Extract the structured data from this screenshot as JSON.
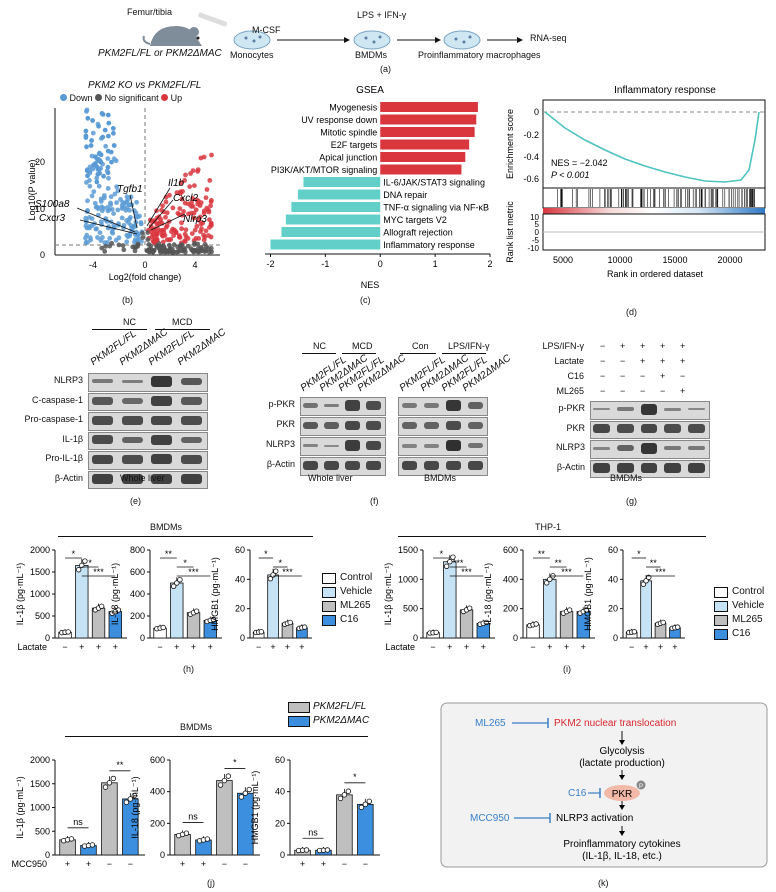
{
  "panel_a": {
    "source": "Femur/tibia",
    "genotypes": "PKM2FL/FL or PKM2ΔMAC",
    "steps": [
      "Monocytes",
      "BMDMs",
      "Proinflammatory macrophages",
      "RNA-seq"
    ],
    "arrow1": "M-CSF",
    "arrow2": "LPS + IFN-γ",
    "letter": "(a)"
  },
  "panel_b": {
    "title": "PKM2 KO vs PKM2FL/FL",
    "legend": [
      "Down",
      "No significant",
      "Up"
    ],
    "colors": {
      "down": "#5b9bd5",
      "ns": "#555555",
      "up": "#d9363e"
    },
    "genes": [
      "Tgfb1",
      "Il1b",
      "Cxcl2",
      "S100a8",
      "Cxcr3",
      "Nlrp3"
    ],
    "ylabel": "Log10(P value)",
    "xlabel": "Log2(fold change)",
    "xticks": [
      "-4",
      "0",
      "4"
    ],
    "yticks": [
      "0",
      "10",
      "20"
    ],
    "letter": "(b)"
  },
  "panel_c": {
    "title": "GSEA",
    "xlabel": "NES",
    "letter": "(c)",
    "chart_data": {
      "type": "bar",
      "categories": [
        "Myogenesis",
        "UV response down",
        "Mitotic spindle",
        "E2F targets",
        "Apical junction",
        "PI3K/AKT/MTOR signaling",
        "IL-6/JAK/STAT3 signaling",
        "DNA repair",
        "TNF-α signaling via NF-κB",
        "MYC targets V2",
        "Allograft rejection",
        "Inflammatory response"
      ],
      "values": [
        1.78,
        1.75,
        1.72,
        1.62,
        1.55,
        1.48,
        -1.4,
        -1.5,
        -1.62,
        -1.72,
        -1.8,
        -2.0
      ],
      "xlim": [
        -2.1,
        2
      ],
      "xticks": [
        "-2",
        "-1",
        "0",
        "1",
        "2"
      ]
    }
  },
  "panel_d": {
    "title": "Inflammatory response",
    "ylabel1": "Enrichment score",
    "ylabel2": "Rank list metric",
    "nes": "NES = −2.042",
    "p": "P < 0.001",
    "xlabel": "Rank in ordered dataset",
    "xticks": [
      "5000",
      "10000",
      "15000",
      "20000"
    ],
    "yticks1": [
      "0",
      "-0.2",
      "-0.4",
      "-0.6"
    ],
    "yticks2": [
      "10",
      "5",
      "0",
      "-5",
      "-10"
    ],
    "letter": "(d)"
  },
  "panel_e": {
    "groups": [
      "NC",
      "MCD"
    ],
    "lanes": [
      "PKM2FL/FL",
      "PKM2ΔMAC",
      "PKM2FL/FL",
      "PKM2ΔMAC"
    ],
    "rows": [
      "NLRP3",
      "C-caspase-1",
      "Pro-caspase-1",
      "IL-1β",
      "Pro-IL-1β",
      "β-Actin"
    ],
    "caption": "Whole liver",
    "letter": "(e)"
  },
  "panel_f": {
    "groups1": [
      "NC",
      "MCD"
    ],
    "groups2": [
      "Con",
      "LPS/IFN-γ"
    ],
    "lanes": [
      "PKM2FL/FL",
      "PKM2ΔMAC",
      "PKM2FL/FL",
      "PKM2ΔMAC"
    ],
    "rows": [
      "p-PKR",
      "PKR",
      "NLRP3",
      "β-Actin"
    ],
    "caption1": "Whole liver",
    "caption2": "BMDMs",
    "letter": "(f)"
  },
  "panel_g": {
    "conditions": [
      {
        "name": "LPS/IFN-γ",
        "marks": [
          "−",
          "+",
          "+",
          "+",
          "+"
        ]
      },
      {
        "name": "Lactate",
        "marks": [
          "−",
          "−",
          "+",
          "+",
          "+"
        ]
      },
      {
        "name": "C16",
        "marks": [
          "−",
          "−",
          "−",
          "+",
          "−"
        ]
      },
      {
        "name": "ML265",
        "marks": [
          "−",
          "−",
          "−",
          "−",
          "+"
        ]
      }
    ],
    "rows": [
      "p-PKR",
      "PKR",
      "NLRP3",
      "β-Actin"
    ],
    "caption": "BMDMs",
    "letter": "(g)"
  },
  "panel_h": {
    "title": "BMDMs",
    "letter": "(h)",
    "xrow_label": "Lactate",
    "marks": [
      "−",
      "+",
      "+",
      "+"
    ],
    "legend": [
      "Control",
      "Vehicle",
      "ML265",
      "C16"
    ],
    "colors": [
      "#ffffff",
      "#c6e2f5",
      "#bfbfbf",
      "#3c8fde"
    ],
    "chart_data": [
      {
        "type": "bar",
        "ylabel": "IL-1β (pg·mL⁻¹)",
        "yticks": [
          "0",
          "500",
          "1000",
          "1500",
          "2000"
        ],
        "ylim": [
          0,
          2000
        ],
        "values": [
          130,
          1650,
          680,
          600
        ],
        "sig": [
          "*",
          "*",
          "***"
        ]
      },
      {
        "type": "bar",
        "ylabel": "IL-18 (pg·mL⁻¹)",
        "yticks": [
          "0",
          "200",
          "400",
          "600",
          "800"
        ],
        "ylim": [
          0,
          800
        ],
        "values": [
          90,
          500,
          230,
          160
        ],
        "sig": [
          "**",
          "*",
          "***"
        ]
      },
      {
        "type": "bar",
        "ylabel": "HMGB1 (pg·mL⁻¹)",
        "yticks": [
          "0",
          "20",
          "40",
          "60"
        ],
        "ylim": [
          0,
          60
        ],
        "values": [
          4,
          43,
          10,
          7
        ],
        "sig": [
          "*",
          "*",
          "***"
        ]
      }
    ]
  },
  "panel_i": {
    "title": "THP-1",
    "letter": "(i)",
    "xrow_label": "Lactate",
    "marks": [
      "−",
      "+",
      "+",
      "+"
    ],
    "legend": [
      "Control",
      "Vehicle",
      "ML265",
      "C16"
    ],
    "chart_data": [
      {
        "type": "bar",
        "ylabel": "IL-1β (pg·mL⁻¹)",
        "yticks": [
          "0",
          "500",
          "1000",
          "1500"
        ],
        "ylim": [
          0,
          1500
        ],
        "values": [
          90,
          1300,
          480,
          250
        ],
        "sig": [
          "*",
          "***",
          "***"
        ]
      },
      {
        "type": "bar",
        "ylabel": "IL-18 (pg·mL⁻¹)",
        "yticks": [
          "0",
          "200",
          "400",
          "600"
        ],
        "ylim": [
          0,
          600
        ],
        "values": [
          90,
          400,
          180,
          180
        ],
        "sig": [
          "**",
          "**",
          "***"
        ]
      },
      {
        "type": "bar",
        "ylabel": "HMGB1 (pg·mL⁻¹)",
        "yticks": [
          "0",
          "20",
          "40",
          "60"
        ],
        "ylim": [
          0,
          60
        ],
        "values": [
          4,
          39,
          10,
          7
        ],
        "sig": [
          "*",
          "**",
          "***"
        ]
      }
    ]
  },
  "panel_j": {
    "title": "BMDMs",
    "letter": "(j)",
    "xrow_label": "MCC950",
    "marks": [
      "+",
      "+",
      "−",
      "−"
    ],
    "legend": [
      "PKM2FL/FL",
      "PKM2ΔMAC"
    ],
    "colors": [
      "#bfbfbf",
      "#3c8fde"
    ],
    "chart_data": [
      {
        "type": "bar",
        "ylabel": "IL-1β (pg·mL⁻¹)",
        "yticks": [
          "0",
          "500",
          "1000",
          "1500",
          "2000"
        ],
        "ylim": [
          0,
          2000
        ],
        "values": [
          320,
          200,
          1520,
          1180
        ],
        "sig": [
          "ns",
          "**"
        ]
      },
      {
        "type": "bar",
        "ylabel": "IL-18 (pg·mL⁻¹)",
        "yticks": [
          "0",
          "200",
          "400",
          "600"
        ],
        "ylim": [
          0,
          600
        ],
        "values": [
          130,
          95,
          470,
          390
        ],
        "sig": [
          "ns",
          "*"
        ]
      },
      {
        "type": "bar",
        "ylabel": "HMGB1 (pg·mL⁻¹)",
        "yticks": [
          "0",
          "20",
          "40",
          "60"
        ],
        "ylim": [
          0,
          60
        ],
        "values": [
          3,
          3,
          38,
          32
        ],
        "sig": [
          "ns",
          "*"
        ]
      }
    ]
  },
  "panel_k": {
    "ml265": "ML265",
    "step1": "PKM2 nuclear translocation",
    "step2": "Glycolysis",
    "step2b": "(lactate production)",
    "c16": "C16",
    "pkr": "PKR",
    "p": "P",
    "mcc950": "MCC950",
    "step3": "NLRP3 activation",
    "step4": "Proinflammatory cytokines",
    "step4b": "(IL-1β, IL-18, etc.)",
    "letter": "(k)"
  }
}
